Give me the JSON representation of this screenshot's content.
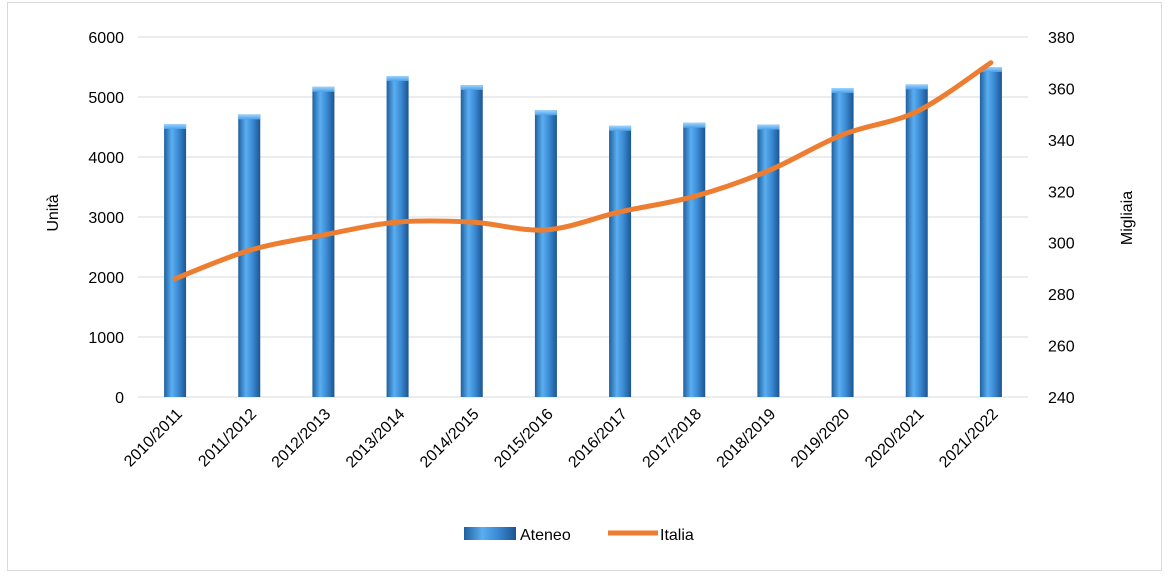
{
  "top_edge_text": "",
  "chart_data": {
    "type": "bar",
    "categories": [
      "2010/2011",
      "2011/2012",
      "2012/2013",
      "2013/2014",
      "2014/2015",
      "2015/2016",
      "2016/2017",
      "2017/2018",
      "2018/2019",
      "2019/2020",
      "2020/2021",
      "2021/2022"
    ],
    "series": [
      {
        "name": "Ateneo",
        "type": "bar",
        "axis": "left",
        "color": "#3c8fd8",
        "values": [
          4550,
          4710,
          5170,
          5350,
          5200,
          4780,
          4520,
          4570,
          4540,
          5150,
          5210,
          5500
        ]
      },
      {
        "name": "Italia",
        "type": "line",
        "axis": "right",
        "color": "#ed7d31",
        "values": [
          286,
          297,
          303,
          308,
          308,
          305,
          312,
          318,
          328,
          342,
          351,
          370
        ]
      }
    ],
    "ylabel": "Unità",
    "y2label": "Migliaia",
    "ylim": [
      0,
      6000
    ],
    "y2lim": [
      240,
      380
    ],
    "yticks": [
      "0",
      "1000",
      "2000",
      "3000",
      "4000",
      "5000",
      "6000"
    ],
    "y2ticks": [
      "240",
      "260",
      "280",
      "300",
      "320",
      "340",
      "360",
      "380"
    ],
    "grid": true,
    "legend": "bottom"
  }
}
